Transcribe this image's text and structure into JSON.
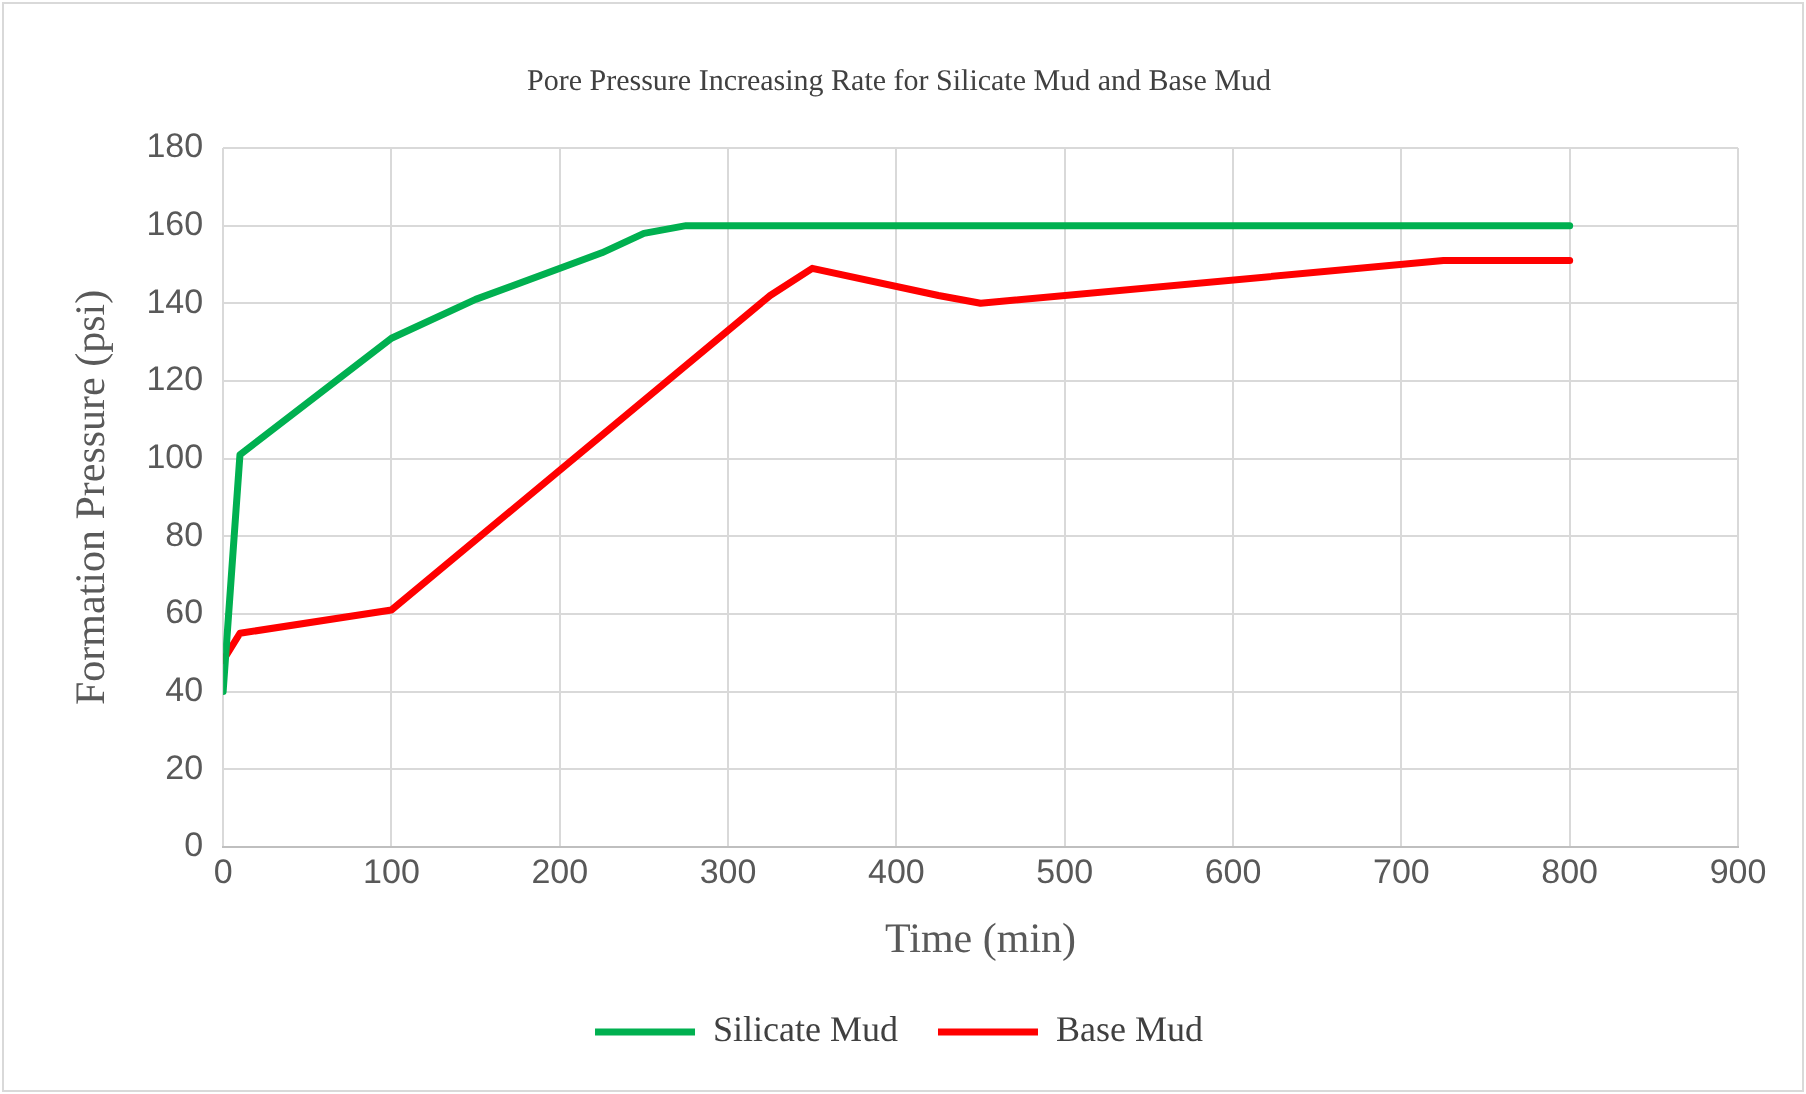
{
  "chart_data": {
    "type": "line",
    "title": "Pore Pressure Increasing Rate for Silicate Mud and Base Mud",
    "xlabel": "Time (min)",
    "ylabel": "Formation Pressure (psi)",
    "xlim": [
      0,
      900
    ],
    "xticks": [
      0,
      100,
      200,
      300,
      400,
      500,
      600,
      700,
      800,
      900
    ],
    "ylim": [
      0,
      180
    ],
    "yticks": [
      0,
      20,
      40,
      60,
      80,
      100,
      120,
      140,
      160,
      180
    ],
    "grid": true,
    "legend": "bottom",
    "marker": "none",
    "line_style": "solid",
    "series": [
      {
        "name": "Silicate Mud",
        "color": "#00b050",
        "x": [
          0,
          10,
          100,
          150,
          225,
          250,
          275,
          800
        ],
        "values": [
          40,
          101,
          131,
          141,
          153,
          158,
          160,
          160
        ]
      },
      {
        "name": "Base Mud",
        "color": "#ff0000",
        "x": [
          0,
          10,
          100,
          325,
          350,
          425,
          450,
          725,
          800
        ],
        "values": [
          48,
          55,
          61,
          142,
          149,
          142,
          140,
          151,
          151
        ]
      }
    ]
  }
}
